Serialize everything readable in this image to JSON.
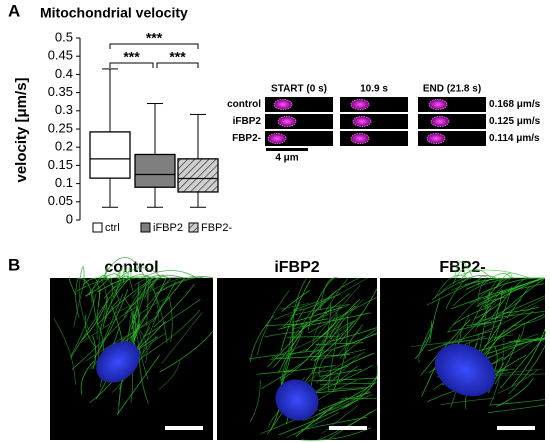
{
  "panel_labels": [
    "A",
    "B"
  ],
  "chart_data": {
    "type": "box",
    "title": "Mitochondrial velocity",
    "y_label": "velocity [μm/s]",
    "ylim": [
      0,
      0.5
    ],
    "yticks": [
      0,
      0.05,
      0.1,
      0.15,
      0.2,
      0.25,
      0.3,
      0.35,
      0.4,
      0.45,
      0.5
    ],
    "boxes": [
      {
        "name": "ctrl",
        "color": "#ffffff",
        "whisker_low": 0.035,
        "q1": 0.115,
        "median": 0.168,
        "q3": 0.242,
        "whisker_high": 0.415
      },
      {
        "name": "iFBP2",
        "color": "#7f7f7f",
        "whisker_low": 0.035,
        "q1": 0.09,
        "median": 0.125,
        "q3": 0.18,
        "whisker_high": 0.32
      },
      {
        "name": "FBP2-",
        "color": "#d0d0d0",
        "pattern": "hatch",
        "whisker_low": 0.035,
        "q1": 0.077,
        "median": 0.114,
        "q3": 0.168,
        "whisker_high": 0.29
      }
    ],
    "significance": [
      {
        "label": "***",
        "between": [
          "ctrl",
          "FBP2-"
        ]
      },
      {
        "label": "***",
        "between": [
          "ctrl",
          "iFBP2"
        ]
      },
      {
        "label": "***",
        "between": [
          "iFBP2",
          "FBP2-"
        ]
      }
    ]
  },
  "kymograph": {
    "columns": [
      "START (0 s)",
      "10.9 s",
      "END (21.8 s)"
    ],
    "rows": [
      {
        "label": "control",
        "velocity": "0.168 μm/s"
      },
      {
        "label": "iFBP2",
        "velocity": "0.125 μm/s"
      },
      {
        "label": "FBP2-",
        "velocity": "0.114 μm/s"
      }
    ],
    "scale_bar": "4 μm"
  },
  "micrographs": {
    "titles": [
      "control",
      "iFBP2",
      "FBP2-"
    ]
  }
}
